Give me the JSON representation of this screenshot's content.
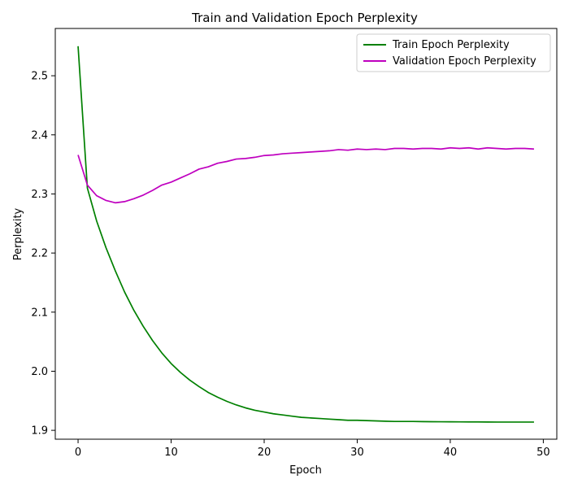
{
  "chart_data": {
    "type": "line",
    "title": "Train and Validation Epoch Perplexity",
    "xlabel": "Epoch",
    "ylabel": "Perplexity",
    "xlim": [
      -2.45,
      51.45
    ],
    "ylim": [
      1.885,
      2.58
    ],
    "xticks": [
      0,
      10,
      20,
      30,
      40,
      50
    ],
    "yticks": [
      1.9,
      2.0,
      2.1,
      2.2,
      2.3,
      2.4,
      2.5
    ],
    "grid": false,
    "legend_position": "top-right",
    "x": [
      0,
      1,
      2,
      3,
      4,
      5,
      6,
      7,
      8,
      9,
      10,
      11,
      12,
      13,
      14,
      15,
      16,
      17,
      18,
      19,
      20,
      21,
      22,
      23,
      24,
      25,
      26,
      27,
      28,
      29,
      30,
      31,
      32,
      33,
      34,
      35,
      36,
      37,
      38,
      39,
      40,
      41,
      42,
      43,
      44,
      45,
      46,
      47,
      48,
      49
    ],
    "series": [
      {
        "name": "Train Epoch Perplexity",
        "color": "#008000",
        "values": [
          2.55,
          2.31,
          2.254,
          2.209,
          2.17,
          2.134,
          2.103,
          2.076,
          2.052,
          2.031,
          2.013,
          1.998,
          1.985,
          1.974,
          1.964,
          1.956,
          1.949,
          1.943,
          1.938,
          1.934,
          1.931,
          1.928,
          1.926,
          1.924,
          1.922,
          1.921,
          1.92,
          1.919,
          1.918,
          1.917,
          1.917,
          1.9165,
          1.916,
          1.9155,
          1.915,
          1.915,
          1.915,
          1.9148,
          1.9146,
          1.9145,
          1.9144,
          1.9143,
          1.9142,
          1.9142,
          1.9141,
          1.914,
          1.914,
          1.914,
          1.914,
          1.914
        ]
      },
      {
        "name": "Validation Epoch Perplexity",
        "color": "#bf00bf",
        "values": [
          2.366,
          2.315,
          2.297,
          2.289,
          2.285,
          2.287,
          2.292,
          2.298,
          2.306,
          2.315,
          2.32,
          2.327,
          2.334,
          2.342,
          2.346,
          2.352,
          2.355,
          2.359,
          2.36,
          2.362,
          2.365,
          2.366,
          2.368,
          2.369,
          2.37,
          2.371,
          2.372,
          2.373,
          2.375,
          2.374,
          2.376,
          2.375,
          2.376,
          2.375,
          2.377,
          2.377,
          2.376,
          2.377,
          2.377,
          2.376,
          2.378,
          2.377,
          2.378,
          2.376,
          2.378,
          2.377,
          2.376,
          2.377,
          2.377,
          2.376
        ]
      }
    ]
  }
}
